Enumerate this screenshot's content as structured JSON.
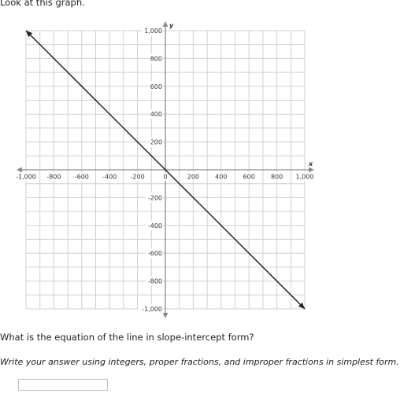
{
  "intro": "Look at this graph.",
  "question": "What is the equation of the line in slope-intercept form?",
  "instruction": "Write your answer using integers, proper fractions, and improper fractions in simplest form.",
  "answer": {
    "value": ""
  },
  "chart_data": {
    "type": "line",
    "xlabel": "x",
    "ylabel": "y",
    "xlim": [
      -1000,
      1000
    ],
    "ylim": [
      -1000,
      1000
    ],
    "grid": true,
    "grid_step": 100,
    "x_ticks": [
      -1000,
      -800,
      -600,
      -400,
      -200,
      0,
      200,
      400,
      600,
      800,
      1000
    ],
    "x_tick_labels": [
      "-1,000",
      "-800",
      "-600",
      "-400",
      "-200",
      "0",
      "200",
      "400",
      "600",
      "800",
      "1,000"
    ],
    "y_ticks": [
      -1000,
      -800,
      -600,
      -400,
      -200,
      200,
      400,
      600,
      800,
      1000
    ],
    "y_tick_labels": [
      "-1,000",
      "-800",
      "-600",
      "-400",
      "-200",
      "200",
      "400",
      "600",
      "800",
      "1,000"
    ],
    "series": [
      {
        "points": [
          [
            -1000,
            1000
          ],
          [
            1000,
            -1000
          ]
        ],
        "arrows": true,
        "color": "#222222"
      }
    ]
  }
}
